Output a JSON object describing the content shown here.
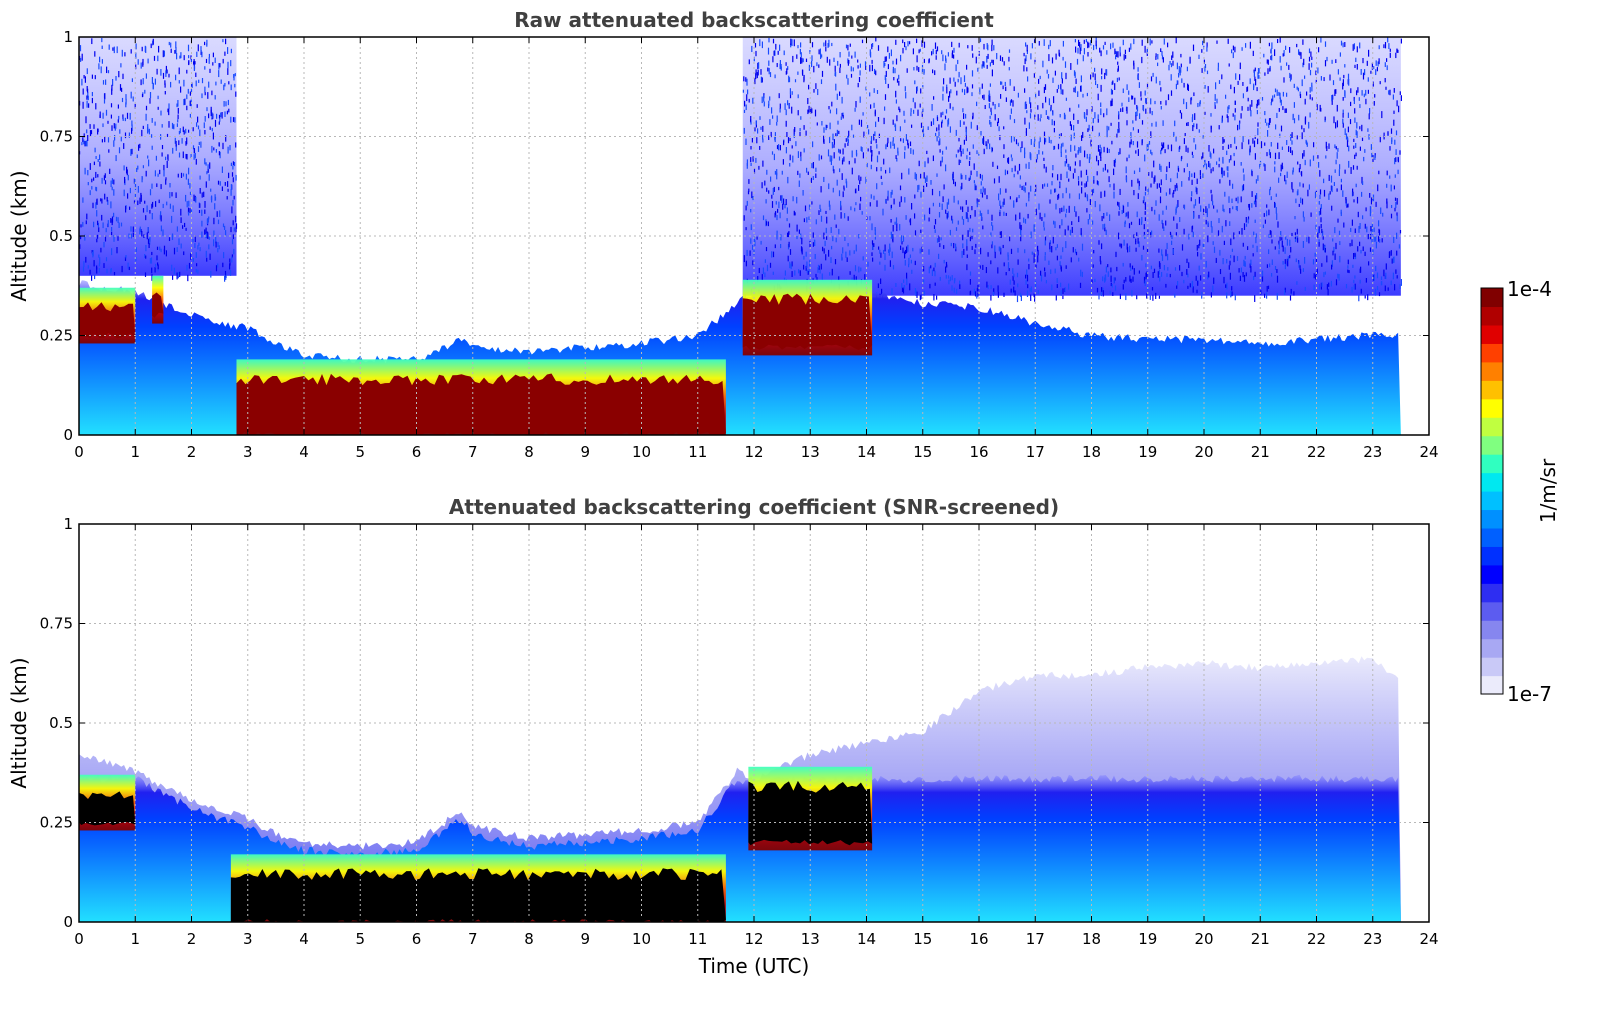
{
  "chart_data": [
    {
      "type": "heatmap",
      "title": "Raw attenuated backscattering coefficient",
      "xlabel": "",
      "ylabel": "Altitude (km)",
      "xlim": [
        0,
        24
      ],
      "ylim": [
        0,
        1
      ],
      "xticks": [
        "0",
        "1",
        "2",
        "3",
        "4",
        "5",
        "6",
        "7",
        "8",
        "9",
        "10",
        "11",
        "12",
        "13",
        "14",
        "15",
        "16",
        "17",
        "18",
        "19",
        "20",
        "21",
        "22",
        "23",
        "24"
      ],
      "yticks": [
        "0",
        "0.25",
        "0.5",
        "0.75",
        "1"
      ],
      "grid": true,
      "data_end_time": 23.5,
      "layer_top_km": [
        [
          0,
          0.38
        ],
        [
          0.5,
          0.37
        ],
        [
          1,
          0.36
        ],
        [
          1.5,
          0.33
        ],
        [
          2,
          0.3
        ],
        [
          2.5,
          0.28
        ],
        [
          3,
          0.27
        ],
        [
          3.5,
          0.23
        ],
        [
          4,
          0.2
        ],
        [
          5,
          0.19
        ],
        [
          6,
          0.19
        ],
        [
          6.8,
          0.24
        ],
        [
          7,
          0.22
        ],
        [
          8,
          0.21
        ],
        [
          9,
          0.22
        ],
        [
          10,
          0.23
        ],
        [
          11,
          0.25
        ],
        [
          11.7,
          0.33
        ],
        [
          12,
          0.36
        ],
        [
          13,
          0.36
        ],
        [
          14,
          0.36
        ],
        [
          15,
          0.33
        ],
        [
          16,
          0.32
        ],
        [
          17,
          0.28
        ],
        [
          18,
          0.25
        ],
        [
          19,
          0.24
        ],
        [
          20,
          0.24
        ],
        [
          21,
          0.23
        ],
        [
          22,
          0.24
        ],
        [
          23,
          0.25
        ],
        [
          23.5,
          0.25
        ]
      ],
      "saturated_regions": [
        {
          "t_start": 0,
          "t_end": 1.0,
          "z_low": 0.25,
          "z_high": 0.33
        },
        {
          "t_start": 1.3,
          "t_end": 1.5,
          "z_low": 0.3,
          "z_high": 0.36
        },
        {
          "t_start": 2.8,
          "t_end": 11.5,
          "z_low": 0.0,
          "z_high": 0.15
        },
        {
          "t_start": 11.8,
          "t_end": 14.1,
          "z_low": 0.22,
          "z_high": 0.35
        }
      ],
      "noise_regions": [
        {
          "t_start": 0,
          "t_end": 2.8,
          "z_low": 0.4,
          "z_high": 1.0
        },
        {
          "t_start": 11.8,
          "t_end": 23.5,
          "z_low": 0.35,
          "z_high": 1.0
        }
      ]
    },
    {
      "type": "heatmap",
      "title": "Attenuated backscattering coefficient (SNR-screened)",
      "xlabel": "Time (UTC)",
      "ylabel": "Altitude (km)",
      "xlim": [
        0,
        24
      ],
      "ylim": [
        0,
        1
      ],
      "xticks": [
        "0",
        "1",
        "2",
        "3",
        "4",
        "5",
        "6",
        "7",
        "8",
        "9",
        "10",
        "11",
        "12",
        "13",
        "14",
        "15",
        "16",
        "17",
        "18",
        "19",
        "20",
        "21",
        "22",
        "23",
        "24"
      ],
      "yticks": [
        "0",
        "0.25",
        "0.5",
        "0.75",
        "1"
      ],
      "grid": true,
      "data_end_time": 23.5,
      "layer_top_km": [
        [
          0,
          0.42
        ],
        [
          0.5,
          0.4
        ],
        [
          1,
          0.38
        ],
        [
          1.5,
          0.34
        ],
        [
          2,
          0.31
        ],
        [
          2.5,
          0.28
        ],
        [
          3,
          0.26
        ],
        [
          3.5,
          0.22
        ],
        [
          4,
          0.2
        ],
        [
          5,
          0.19
        ],
        [
          6,
          0.2
        ],
        [
          6.8,
          0.28
        ],
        [
          7,
          0.24
        ],
        [
          8,
          0.21
        ],
        [
          9,
          0.22
        ],
        [
          10,
          0.23
        ],
        [
          11,
          0.25
        ],
        [
          11.7,
          0.38
        ],
        [
          12,
          0.36
        ],
        [
          13,
          0.42
        ],
        [
          14,
          0.45
        ],
        [
          15,
          0.48
        ],
        [
          16,
          0.58
        ],
        [
          17,
          0.62
        ],
        [
          18,
          0.62
        ],
        [
          19,
          0.64
        ],
        [
          20,
          0.65
        ],
        [
          21,
          0.64
        ],
        [
          22,
          0.65
        ],
        [
          23,
          0.66
        ],
        [
          23.5,
          0.6
        ]
      ],
      "masked_regions": [
        {
          "t_start": 0,
          "t_end": 1.0,
          "z_low": 0.25,
          "z_high": 0.33
        },
        {
          "t_start": 2.7,
          "t_end": 11.5,
          "z_low": 0.0,
          "z_high": 0.13
        },
        {
          "t_start": 11.9,
          "t_end": 14.1,
          "z_low": 0.2,
          "z_high": 0.35
        }
      ]
    }
  ],
  "colorbar": {
    "label": "1/m/sr",
    "max_label": "1e-4",
    "min_label": "1e-7",
    "colors": [
      "#ebebfb",
      "#c9c9f7",
      "#a8a8f3",
      "#8686ef",
      "#5c5cf0",
      "#2e2ef2",
      "#0000ff",
      "#0030ff",
      "#0060ff",
      "#0090ff",
      "#00c0ff",
      "#00e8f0",
      "#30ffc0",
      "#80ff80",
      "#c0ff40",
      "#ffff00",
      "#ffc000",
      "#ff8000",
      "#ff4000",
      "#e00000",
      "#b00000",
      "#800000"
    ]
  }
}
